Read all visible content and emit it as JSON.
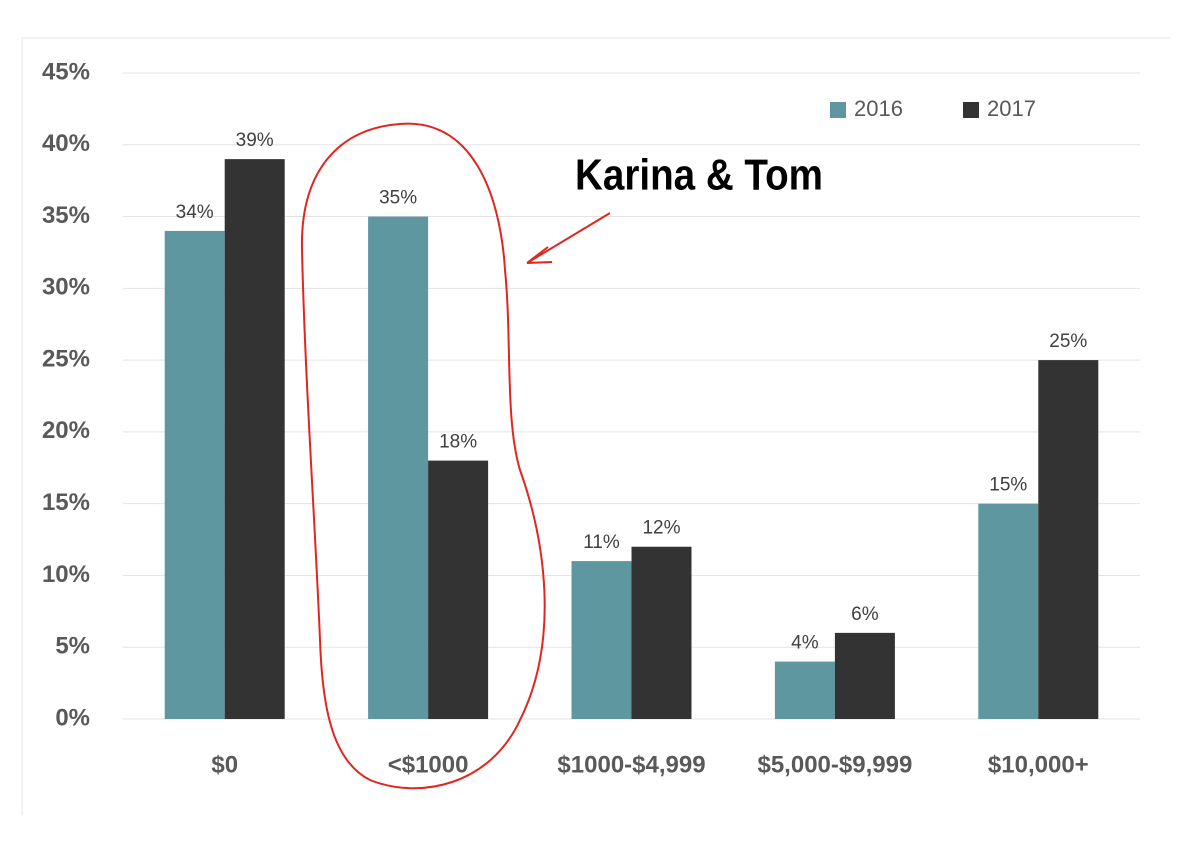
{
  "chart_data": {
    "type": "bar",
    "categories": [
      "$0",
      "<$1000",
      "$1000-$4,999",
      "$5,000-$9,999",
      "$10,000+"
    ],
    "series": [
      {
        "name": "2016",
        "color": "#5f97a0",
        "values": [
          34,
          35,
          11,
          4,
          15
        ],
        "value_labels": [
          "34%",
          "35%",
          "11%",
          "4%",
          "15%"
        ]
      },
      {
        "name": "2017",
        "color": "#333333",
        "values": [
          39,
          18,
          12,
          6,
          25
        ],
        "value_labels": [
          "39%",
          "18%",
          "12%",
          "6%",
          "25%"
        ]
      }
    ],
    "ylim": [
      0,
      45
    ],
    "yticks": [
      {
        "value": 0,
        "label": "0%"
      },
      {
        "value": 5,
        "label": "5%"
      },
      {
        "value": 10,
        "label": "10%"
      },
      {
        "value": 15,
        "label": "15%"
      },
      {
        "value": 20,
        "label": "20%"
      },
      {
        "value": 25,
        "label": "25%"
      },
      {
        "value": 30,
        "label": "30%"
      },
      {
        "value": 35,
        "label": "35%"
      },
      {
        "value": 40,
        "label": "40%"
      },
      {
        "value": 45,
        "label": "45%"
      }
    ],
    "grid": true,
    "legend": "top-right",
    "annotation": "Karina & Tom"
  }
}
